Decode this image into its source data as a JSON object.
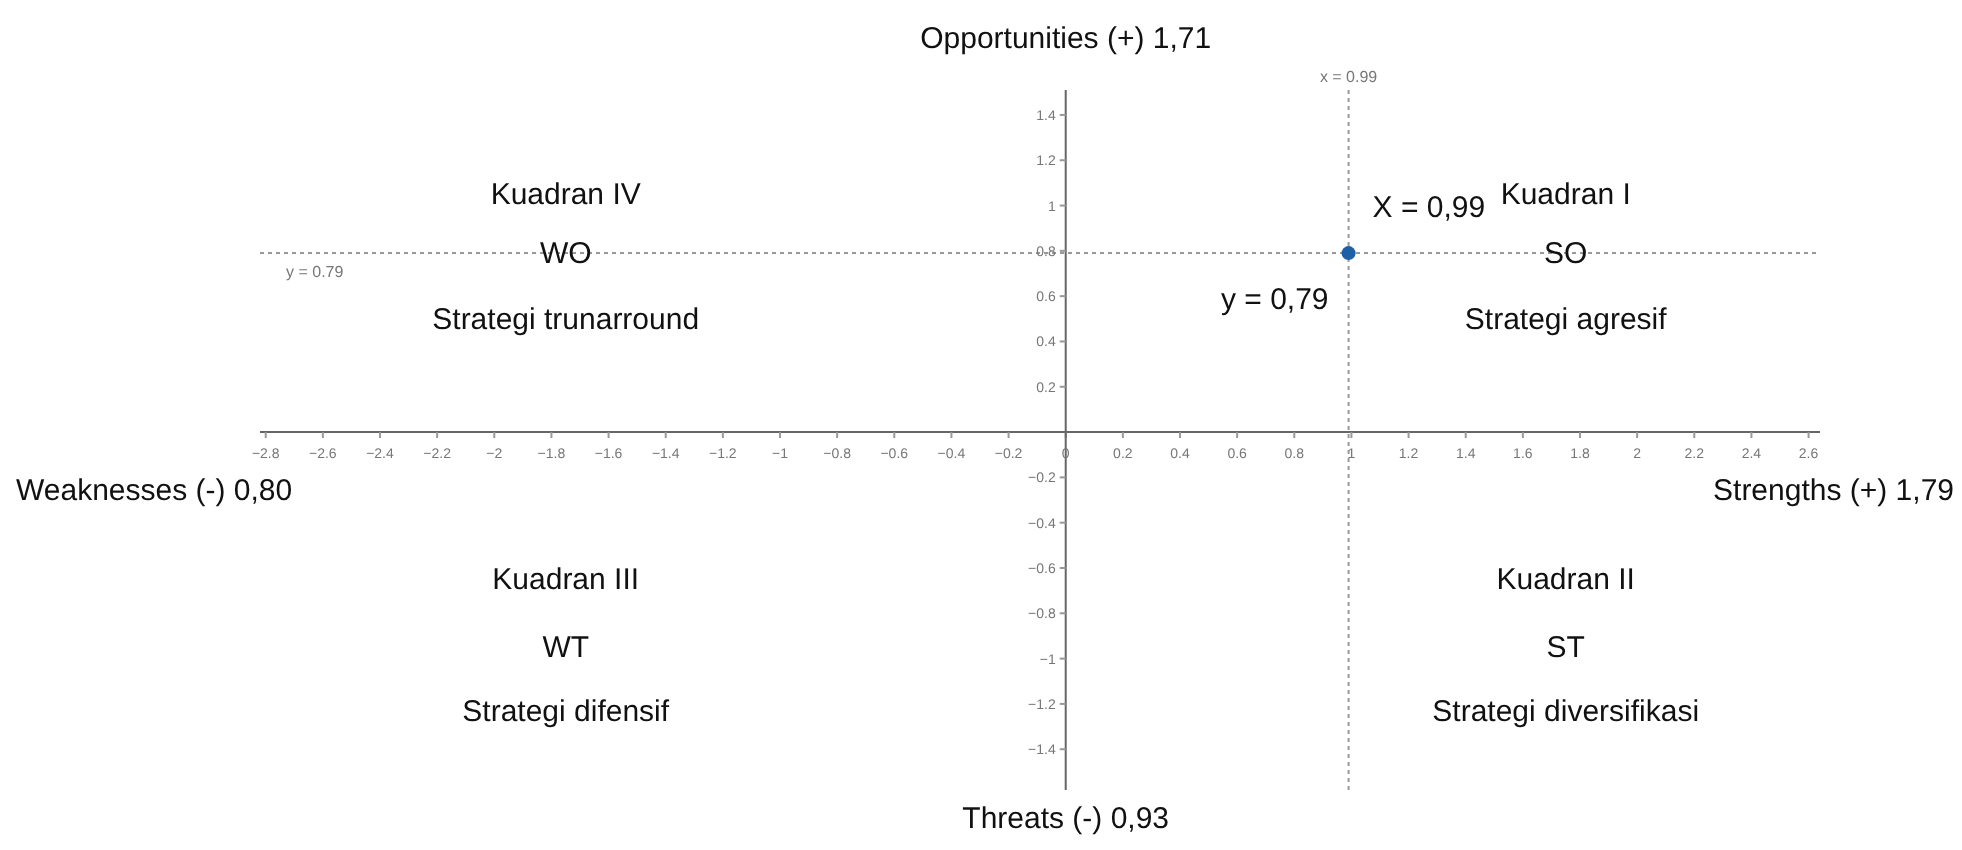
{
  "chart_data": {
    "type": "scatter",
    "series": [
      {
        "color": "#1f5fa8",
        "x": [
          0.99
        ],
        "values": [
          0.79
        ]
      }
    ],
    "marker": "circle",
    "xlim": [
      -2.82,
      2.64
    ],
    "xticks": [
      {
        "value": -2.8,
        "label": "−2.8"
      },
      {
        "value": -2.6,
        "label": "−2.6"
      },
      {
        "value": -2.4,
        "label": "−2.4"
      },
      {
        "value": -2.2,
        "label": "−2.2"
      },
      {
        "value": -2,
        "label": "−2"
      },
      {
        "value": -1.8,
        "label": "−1.8"
      },
      {
        "value": -1.6,
        "label": "−1.6"
      },
      {
        "value": -1.4,
        "label": "−1.4"
      },
      {
        "value": -1.2,
        "label": "−1.2"
      },
      {
        "value": -1,
        "label": "−1"
      },
      {
        "value": -0.8,
        "label": "−0.8"
      },
      {
        "value": -0.6,
        "label": "−0.6"
      },
      {
        "value": -0.4,
        "label": "−0.4"
      },
      {
        "value": -0.2,
        "label": "−0.2"
      },
      0,
      0.2,
      0.4,
      0.6,
      0.8,
      1,
      1.2,
      1.4,
      1.6,
      1.8,
      2,
      2.2,
      2.4,
      2.6
    ],
    "ylim": [
      -1.58,
      1.51
    ],
    "yticks": [
      {
        "value": -1.4,
        "label": "−1.4"
      },
      {
        "value": -1.2,
        "label": "−1.2"
      },
      {
        "value": -1,
        "label": "−1"
      },
      {
        "value": -0.8,
        "label": "−0.8"
      },
      {
        "value": -0.6,
        "label": "−0.6"
      },
      {
        "value": -0.4,
        "label": "−0.4"
      },
      {
        "value": -0.2,
        "label": "−0.2"
      },
      0.2,
      0.4,
      0.6,
      0.8,
      1,
      1.2,
      1.4
    ],
    "grid": false,
    "ref_lines": [
      {
        "axis": "x",
        "value": 0.99,
        "label": "x = 0.99",
        "color": "#999999",
        "line_style": "dotted"
      },
      {
        "axis": "y",
        "value": 0.79,
        "label": "y = 0.79",
        "color": "#999999",
        "line_style": "dotted"
      }
    ],
    "annotations": [
      "Opportunities (+) 1,71",
      "Threats (-) 0,93",
      "Weaknesses (-) 0,80",
      "Strengths (+) 1,79",
      {
        "text": "X = 0,99",
        "x": 0.99,
        "y": 0.79
      },
      {
        "text": "y = 0,79",
        "x": 0.99,
        "y": 0.79
      },
      "Kuadran IV",
      "WO",
      "Strategi trunarround",
      "Kuadran I",
      "SO",
      "Strategi agresif",
      "Kuadran III",
      "WT",
      "Strategi difensif",
      "Kuadran II",
      "ST",
      "Strategi diversifikasi"
    ]
  }
}
